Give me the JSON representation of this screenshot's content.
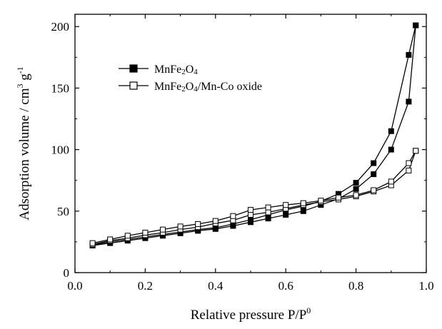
{
  "chart_data": {
    "type": "line",
    "xlabel": "Relative pressure P/P",
    "xlabel_sup": "0",
    "ylabel": "Adsorption volume / cm",
    "ylabel_sup": "3",
    "ylabel_g": " g",
    "ylabel_sup2": "-1",
    "xlim": [
      0.0,
      1.0
    ],
    "ylim": [
      0,
      210
    ],
    "xticks": [
      "0.0",
      "0.2",
      "0.4",
      "0.6",
      "0.8",
      "1.0"
    ],
    "yticks": [
      "0",
      "50",
      "100",
      "150",
      "200"
    ],
    "grid": false,
    "legend_position": "top-left",
    "series": [
      {
        "name": "MnFe2O4",
        "legend_parts": [
          "MnFe",
          "2",
          "O",
          "4",
          ""
        ],
        "marker": "filled-square",
        "color": "#000000",
        "adsorption": {
          "x": [
            0.05,
            0.1,
            0.15,
            0.2,
            0.25,
            0.3,
            0.35,
            0.4,
            0.45,
            0.5,
            0.55,
            0.6,
            0.65,
            0.7,
            0.75,
            0.8,
            0.85,
            0.9,
            0.95,
            0.97
          ],
          "y": [
            22,
            24,
            26,
            28,
            30,
            32,
            34,
            35.5,
            38,
            41,
            44,
            47,
            50,
            55,
            60,
            68,
            80,
            100,
            139,
            201
          ]
        },
        "desorption": {
          "x": [
            0.97,
            0.95,
            0.9,
            0.85,
            0.8,
            0.75,
            0.7,
            0.65,
            0.6,
            0.55,
            0.5,
            0.45,
            0.4,
            0.35,
            0.3,
            0.25,
            0.2,
            0.15,
            0.1,
            0.05
          ],
          "y": [
            201,
            177,
            115,
            89,
            73,
            64,
            58,
            54,
            51,
            47,
            43,
            39.5,
            36.5,
            35,
            33,
            31,
            29,
            27,
            25,
            22.5
          ]
        }
      },
      {
        "name": "MnFe2O4/Mn-Co oxide",
        "legend_parts": [
          "MnFe",
          "2",
          "O",
          "4",
          "/Mn-Co oxide"
        ],
        "marker": "open-square",
        "color": "#000000",
        "adsorption": {
          "x": [
            0.05,
            0.1,
            0.15,
            0.2,
            0.25,
            0.3,
            0.35,
            0.4,
            0.45,
            0.5,
            0.55,
            0.6,
            0.65,
            0.7,
            0.75,
            0.8,
            0.85,
            0.9,
            0.95,
            0.97
          ],
          "y": [
            23,
            26,
            28,
            30.5,
            32.5,
            35,
            37,
            40,
            42.5,
            47,
            49,
            52,
            55,
            57.5,
            59.5,
            62,
            66,
            71,
            83,
            99
          ]
        },
        "desorption": {
          "x": [
            0.97,
            0.95,
            0.9,
            0.85,
            0.8,
            0.75,
            0.7,
            0.65,
            0.6,
            0.55,
            0.5,
            0.45,
            0.4,
            0.35,
            0.3,
            0.25,
            0.2,
            0.15,
            0.1,
            0.05
          ],
          "y": [
            99,
            89,
            74,
            67,
            63,
            61,
            58.5,
            56.5,
            55,
            53,
            51,
            46,
            42,
            39.5,
            37.5,
            35,
            32.5,
            30,
            27,
            24
          ]
        }
      }
    ]
  }
}
